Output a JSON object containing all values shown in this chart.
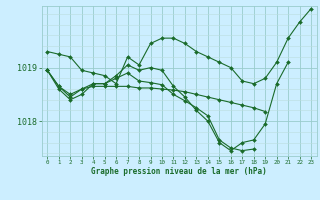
{
  "title": "Graphe pression niveau de la mer (hPa)",
  "bg_color": "#cceeff",
  "grid_color_major": "#99cccc",
  "grid_color_minor": "#bbdddd",
  "line_color": "#1a6b2a",
  "xlim": [
    -0.5,
    23.5
  ],
  "ylim": [
    1017.35,
    1020.15
  ],
  "yticks": [
    1018.0,
    1019.0
  ],
  "xticks": [
    0,
    1,
    2,
    3,
    4,
    5,
    6,
    7,
    8,
    9,
    10,
    11,
    12,
    13,
    14,
    15,
    16,
    17,
    18,
    19,
    20,
    21,
    22,
    23
  ],
  "series": [
    [
      1019.3,
      1019.25,
      1019.2,
      1018.95,
      1018.9,
      1018.85,
      1018.7,
      1019.2,
      1019.05,
      1019.45,
      1019.55,
      1019.55,
      1019.45,
      1019.3,
      1019.2,
      1019.1,
      1019.0,
      1018.75,
      1018.7,
      1018.8,
      1019.1,
      1019.55,
      1019.85,
      1020.1
    ],
    [
      1018.95,
      1018.6,
      1018.4,
      1018.5,
      1018.7,
      1018.7,
      1018.85,
      1019.05,
      1018.95,
      1019.0,
      1018.95,
      1018.65,
      1018.45,
      1018.2,
      1018.0,
      1017.6,
      1017.45,
      1017.6,
      1017.65,
      1017.95,
      1018.7,
      1019.1,
      null,
      null
    ],
    [
      1018.95,
      1018.65,
      1018.5,
      1018.6,
      1018.65,
      1018.65,
      1018.65,
      1018.65,
      1018.62,
      1018.62,
      1018.6,
      1018.58,
      1018.55,
      1018.5,
      1018.45,
      1018.4,
      1018.35,
      1018.3,
      1018.25,
      1018.18,
      null,
      null,
      null,
      null
    ],
    [
      1018.95,
      1018.65,
      1018.45,
      1018.6,
      1018.7,
      1018.7,
      1018.8,
      1018.9,
      1018.75,
      1018.72,
      1018.68,
      1018.5,
      1018.38,
      1018.25,
      1018.1,
      1017.65,
      1017.5,
      1017.45,
      1017.48,
      null,
      null,
      null,
      null,
      null
    ]
  ]
}
